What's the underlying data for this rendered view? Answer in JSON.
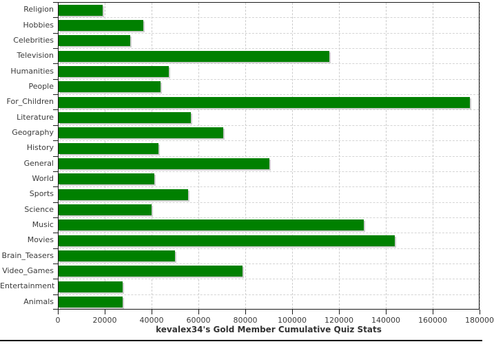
{
  "chart_data": {
    "type": "bar",
    "orientation": "horizontal",
    "title": "kevalex34's Gold Member Cumulative Quiz Stats",
    "xlabel": "",
    "ylabel": "",
    "categories": [
      "Religion",
      "Hobbies",
      "Celebrities",
      "Television",
      "Humanities",
      "People",
      "For_Children",
      "Literature",
      "Geography",
      "History",
      "General",
      "World",
      "Sports",
      "Science",
      "Music",
      "Movies",
      "Brain_Teasers",
      "Video_Games",
      "Entertainment",
      "Animals"
    ],
    "values": [
      18900,
      36300,
      30700,
      115700,
      47100,
      43600,
      175600,
      56600,
      70400,
      42700,
      90100,
      40900,
      55400,
      39800,
      130200,
      143400,
      49800,
      78400,
      27400,
      27400
    ],
    "xlim": [
      0,
      180000
    ],
    "xticks": [
      0,
      20000,
      40000,
      60000,
      80000,
      100000,
      120000,
      140000,
      160000,
      180000
    ],
    "grid": true,
    "legend": "none",
    "bar_color": "#008000",
    "bar_shadow_color": "#cfcfcf",
    "grid_color": "#cccccc",
    "axis_color": "#1a1a1a",
    "text_color": "#3a3a3a"
  }
}
